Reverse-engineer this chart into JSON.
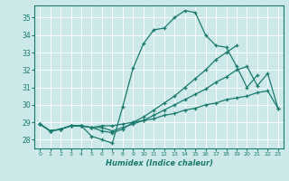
{
  "xlabel": "Humidex (Indice chaleur)",
  "background_color": "#cce8e8",
  "grid_color": "#aacccc",
  "line_color": "#1a7a6e",
  "xlim": [
    -0.5,
    23.5
  ],
  "ylim": [
    27.5,
    35.7
  ],
  "yticks": [
    28,
    29,
    30,
    31,
    32,
    33,
    34,
    35
  ],
  "xticks": [
    0,
    1,
    2,
    3,
    4,
    5,
    6,
    7,
    8,
    9,
    10,
    11,
    12,
    13,
    14,
    15,
    16,
    17,
    18,
    19,
    20,
    21,
    22,
    23
  ],
  "series": [
    [
      28.9,
      28.5,
      28.6,
      28.8,
      28.8,
      28.2,
      28.0,
      27.8,
      29.9,
      32.1,
      33.5,
      34.3,
      34.4,
      35.0,
      35.4,
      35.3,
      34.0,
      33.4,
      33.3,
      32.2,
      31.0,
      31.7,
      null,
      null
    ],
    [
      28.9,
      28.5,
      28.6,
      28.8,
      28.8,
      28.7,
      28.5,
      28.4,
      28.6,
      29.0,
      29.3,
      29.7,
      30.1,
      30.5,
      31.0,
      31.5,
      32.0,
      32.6,
      33.0,
      33.4,
      null,
      null,
      null,
      null
    ],
    [
      28.9,
      28.5,
      28.6,
      28.8,
      28.8,
      28.7,
      28.7,
      28.5,
      28.7,
      28.9,
      29.1,
      29.4,
      29.7,
      30.0,
      30.3,
      30.6,
      30.9,
      31.3,
      31.6,
      32.0,
      32.2,
      31.1,
      31.8,
      29.8
    ],
    [
      28.9,
      28.5,
      28.6,
      28.8,
      28.8,
      28.7,
      28.8,
      28.8,
      28.9,
      29.0,
      29.1,
      29.2,
      29.4,
      29.5,
      29.7,
      29.8,
      30.0,
      30.1,
      30.3,
      30.4,
      30.5,
      30.7,
      30.8,
      29.8
    ]
  ]
}
